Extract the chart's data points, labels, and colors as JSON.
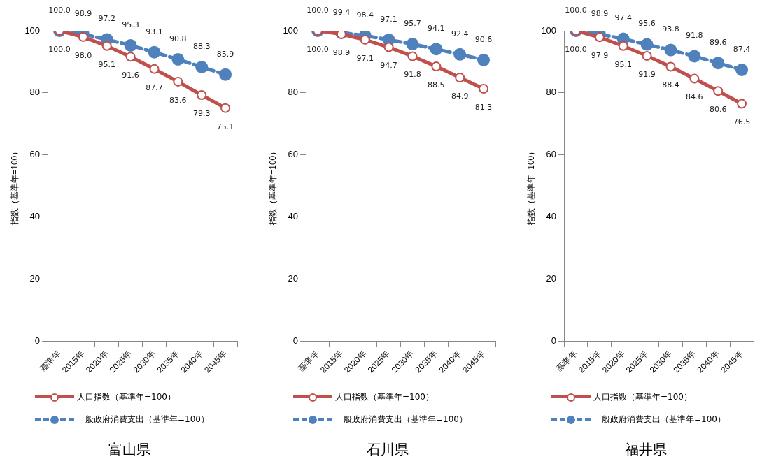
{
  "chart_data": [
    {
      "type": "line",
      "title": "富山県",
      "ylabel": "指数（基準年=100）",
      "categories": [
        "基準年",
        "2015年",
        "2020年",
        "2025年",
        "2030年",
        "2035年",
        "2040年",
        "2045年"
      ],
      "ylim": [
        0,
        100
      ],
      "yticks": [
        0,
        20,
        40,
        60,
        80,
        100
      ],
      "grid": false,
      "legend": "bottom",
      "marker": "circle",
      "series": [
        {
          "name": "人口指数（基準年=100）",
          "color": "#c0504d",
          "line_style": "solid",
          "values": [
            100.0,
            98.0,
            95.1,
            91.6,
            87.7,
            83.6,
            79.3,
            75.1
          ],
          "value_labels": [
            "100.0",
            "98.0",
            "95.1",
            "91.6",
            "87.7",
            "83.6",
            "79.3",
            "75.1"
          ]
        },
        {
          "name": "一般政府消費支出（基準年=100）",
          "color": "#4f81bd",
          "line_style": "dashed",
          "values": [
            100.0,
            98.9,
            97.2,
            95.3,
            93.1,
            90.8,
            88.3,
            85.9
          ],
          "value_labels": [
            "100.0",
            "98.9",
            "97.2",
            "95.3",
            "93.1",
            "90.8",
            "88.3",
            "85.9"
          ]
        }
      ]
    },
    {
      "type": "line",
      "title": "石川県",
      "ylabel": "指数（基準年=100）",
      "categories": [
        "基準年",
        "2015年",
        "2020年",
        "2025年",
        "2030年",
        "2035年",
        "2040年",
        "2045年"
      ],
      "ylim": [
        0,
        100
      ],
      "yticks": [
        0,
        20,
        40,
        60,
        80,
        100
      ],
      "grid": false,
      "legend": "bottom",
      "marker": "circle",
      "series": [
        {
          "name": "人口指数（基準年=100）",
          "color": "#c0504d",
          "line_style": "solid",
          "values": [
            100.0,
            98.9,
            97.1,
            94.7,
            91.8,
            88.5,
            84.9,
            81.3
          ],
          "value_labels": [
            "100.0",
            "98.9",
            "97.1",
            "94.7",
            "91.8",
            "88.5",
            "84.9",
            "81.3"
          ]
        },
        {
          "name": "一般政府消費支出（基準年=100）",
          "color": "#4f81bd",
          "line_style": "dashed",
          "values": [
            100.0,
            99.4,
            98.4,
            97.1,
            95.7,
            94.1,
            92.4,
            90.6
          ],
          "value_labels": [
            "100.0",
            "99.4",
            "98.4",
            "97.1",
            "95.7",
            "94.1",
            "92.4",
            "90.6"
          ]
        }
      ]
    },
    {
      "type": "line",
      "title": "福井県",
      "ylabel": "指数（基準年=100）",
      "categories": [
        "基準年",
        "2015年",
        "2020年",
        "2025年",
        "2030年",
        "2035年",
        "2040年",
        "2045年"
      ],
      "ylim": [
        0,
        100
      ],
      "yticks": [
        0,
        20,
        40,
        60,
        80,
        100
      ],
      "grid": false,
      "legend": "bottom",
      "marker": "circle",
      "series": [
        {
          "name": "人口指数（基準年=100）",
          "color": "#c0504d",
          "line_style": "solid",
          "values": [
            100.0,
            97.9,
            95.1,
            91.9,
            88.4,
            84.6,
            80.6,
            76.5
          ],
          "value_labels": [
            "100.0",
            "97.9",
            "95.1",
            "91.9",
            "88.4",
            "84.6",
            "80.6",
            "76.5"
          ]
        },
        {
          "name": "一般政府消費支出（基準年=100）",
          "color": "#4f81bd",
          "line_style": "dashed",
          "values": [
            100.0,
            98.9,
            97.4,
            95.6,
            93.8,
            91.8,
            89.6,
            87.4
          ],
          "value_labels": [
            "100.0",
            "98.9",
            "97.4",
            "95.6",
            "93.8",
            "91.8",
            "89.6",
            "87.4"
          ]
        }
      ]
    }
  ]
}
